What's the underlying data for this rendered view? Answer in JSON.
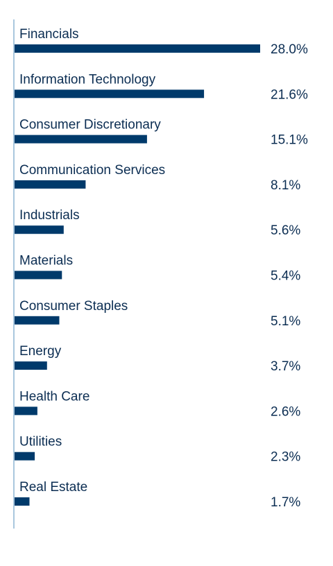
{
  "chart_data": {
    "type": "bar",
    "orientation": "horizontal",
    "categories": [
      "Financials",
      "Information Technology",
      "Consumer Discretionary",
      "Communication Services",
      "Industrials",
      "Materials",
      "Consumer Staples",
      "Energy",
      "Health Care",
      "Utilities",
      "Real Estate"
    ],
    "values": [
      28.0,
      21.6,
      15.1,
      8.1,
      5.6,
      5.4,
      5.1,
      3.7,
      2.6,
      2.3,
      1.7
    ],
    "value_labels": [
      "28.0%",
      "21.6%",
      "15.1%",
      "8.1%",
      "5.6%",
      "5.4%",
      "5.1%",
      "3.7%",
      "2.6%",
      "2.3%",
      "1.7%"
    ],
    "xlim": [
      0,
      28.0
    ],
    "unit": "%",
    "grid": false,
    "legend": "none",
    "bar_color": "#003a6b",
    "axis_color": "#a9c7de",
    "text_color": "#0b2d52"
  }
}
